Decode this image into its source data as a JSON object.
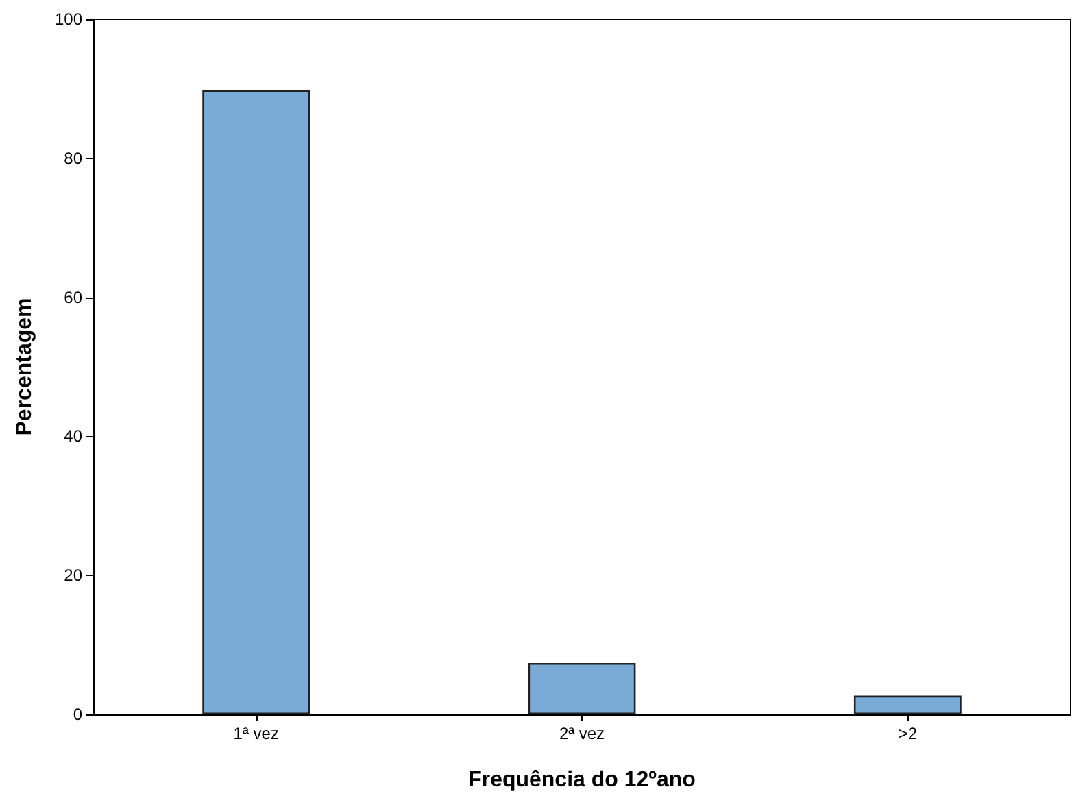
{
  "chart_data": {
    "type": "bar",
    "xlabel": "Frequência do 12ºano",
    "ylabel": "Percentagem",
    "categories": [
      "1ª vez",
      "2ª vez",
      ">2"
    ],
    "values": [
      89.8,
      7.4,
      2.7
    ],
    "color": "#7aaad6",
    "ylim": [
      0,
      100
    ],
    "yticks": [
      0,
      20,
      40,
      60,
      80,
      100
    ],
    "grid": false
  }
}
